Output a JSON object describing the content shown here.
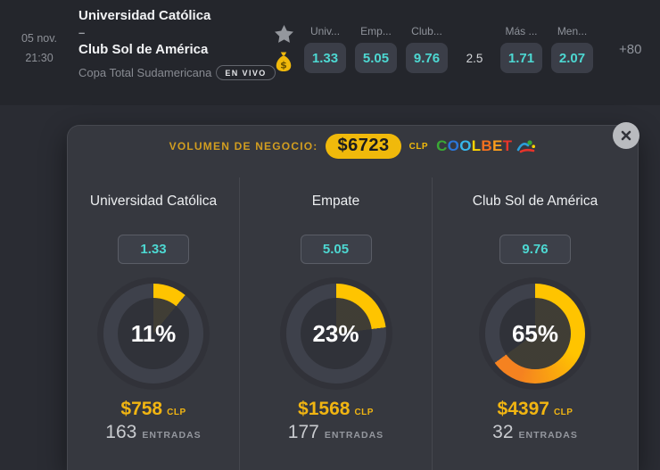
{
  "topbar": {
    "date": "05 nov.",
    "time": "21:30",
    "home_team": "Universidad Católica",
    "separator": "–",
    "away_team": "Club Sol de América",
    "league": "Copa Total Sudamericana",
    "live_badge": "EN VIVO",
    "market_1x2": {
      "headers": [
        "Univ...",
        "Emp...",
        "Club..."
      ],
      "odds": [
        "1.33",
        "5.05",
        "9.76"
      ]
    },
    "total_line": "2.5",
    "market_totals": {
      "headers": [
        "Más ...",
        "Men..."
      ],
      "odds": [
        "1.71",
        "2.07"
      ]
    },
    "more_markets": "+80"
  },
  "popup": {
    "header_label": "VOLUMEN DE NEGOCIO:",
    "total_amount": "$6723",
    "currency": "CLP",
    "brand": {
      "name": "COOLBET",
      "letters": [
        {
          "ch": "C",
          "color": "#3aa935"
        },
        {
          "ch": "O",
          "color": "#2b76d9"
        },
        {
          "ch": "O",
          "color": "#38b6ea"
        },
        {
          "ch": "L",
          "color": "#ffd400"
        },
        {
          "ch": "B",
          "color": "#f4711f"
        },
        {
          "ch": "E",
          "color": "#f99d1c"
        },
        {
          "ch": "T",
          "color": "#e8352a"
        }
      ]
    },
    "donut": {
      "track_color": "#3e414b",
      "wedge_color": "rgba(255,195,0,0.08)"
    },
    "columns": [
      {
        "name": "Universidad Católica",
        "odds": "1.33",
        "percent": 11,
        "percent_label": "11%",
        "amount": "$758",
        "currency": "CLP",
        "entries": "163",
        "entries_label": "ENTRADAS",
        "arc_colors": [
          "#ffc400"
        ]
      },
      {
        "name": "Empate",
        "odds": "5.05",
        "percent": 23,
        "percent_label": "23%",
        "amount": "$1568",
        "currency": "CLP",
        "entries": "177",
        "entries_label": "ENTRADAS",
        "arc_colors": [
          "#ffc400"
        ]
      },
      {
        "name": "Club Sol de América",
        "odds": "9.76",
        "percent": 65,
        "percent_label": "65%",
        "amount": "$4397",
        "currency": "CLP",
        "entries": "32",
        "entries_label": "ENTRADAS",
        "arc_colors": [
          "#ffc400",
          "#f58220"
        ]
      }
    ]
  },
  "colors": {
    "accent_teal": "#4dd8d2",
    "gold": "#f0b90b",
    "arc_yellow": "#ffc400",
    "arc_orange": "#f58220"
  }
}
